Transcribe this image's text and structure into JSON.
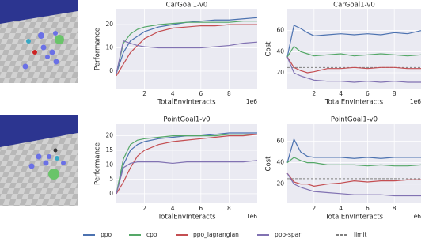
{
  "chart_data": [
    {
      "type": "line",
      "title": "CarGoal1-v0",
      "xlabel": "TotalEnvInteracts",
      "ylabel": "Performance",
      "x_offset_label": "1e6",
      "x": [
        0,
        0.5,
        1,
        1.5,
        2,
        3,
        4,
        5,
        6,
        7,
        8,
        9,
        10
      ],
      "xlim": [
        0,
        10
      ],
      "xticks": [
        2,
        4,
        6,
        8
      ],
      "ylim": [
        -7.5,
        26.5
      ],
      "yticks": [
        0,
        10,
        20
      ],
      "grid": true,
      "series": [
        {
          "name": "ppo",
          "color": "#4c72b0",
          "values": [
            -1,
            8,
            13,
            15,
            17,
            19,
            20,
            21,
            21.5,
            22,
            22,
            22.5,
            23
          ]
        },
        {
          "name": "cpo",
          "color": "#55a868",
          "values": [
            -1,
            12,
            16,
            18,
            19,
            20,
            20.5,
            21,
            21,
            21,
            21,
            21.5,
            21.5
          ]
        },
        {
          "name": "ppo_lagrangian",
          "color": "#c44e52",
          "values": [
            -2,
            3,
            8,
            11,
            14,
            17,
            18.5,
            19,
            19.5,
            19.5,
            20,
            20,
            20
          ]
        },
        {
          "name": "ppo-spar",
          "color": "#8172b2",
          "values": [
            -1,
            13,
            12,
            11,
            10.5,
            10,
            10,
            10,
            10,
            10.5,
            11,
            12,
            12.5
          ]
        }
      ]
    },
    {
      "type": "line",
      "title": "CarGoal1-v0",
      "xlabel": "TotalEnvInteracts",
      "ylabel": "Cost",
      "x_offset_label": "1e6",
      "x": [
        0,
        0.5,
        1,
        1.5,
        2,
        3,
        4,
        5,
        6,
        7,
        8,
        9,
        10
      ],
      "xlim": [
        0,
        10
      ],
      "xticks": [
        2,
        4,
        6,
        8
      ],
      "ylim": [
        5,
        80
      ],
      "yticks": [
        20,
        40,
        60
      ],
      "grid": true,
      "limit": {
        "name": "limit",
        "value": 25,
        "color": "#808080"
      },
      "series": [
        {
          "name": "ppo",
          "color": "#4c72b0",
          "values": [
            35,
            65,
            62,
            58,
            55,
            56,
            57,
            56,
            57,
            56,
            58,
            57,
            60
          ]
        },
        {
          "name": "cpo",
          "color": "#55a868",
          "values": [
            35,
            45,
            40,
            38,
            36,
            37,
            38,
            36,
            37,
            38,
            37,
            36,
            37
          ]
        },
        {
          "name": "ppo_lagrangian",
          "color": "#c44e52",
          "values": [
            35,
            25,
            22,
            20,
            21,
            24,
            24,
            25,
            24,
            25,
            25,
            24,
            24
          ]
        },
        {
          "name": "ppo-spar",
          "color": "#8172b2",
          "values": [
            35,
            20,
            17,
            15,
            13,
            12,
            12,
            11,
            12,
            11,
            12,
            11,
            11
          ]
        }
      ]
    },
    {
      "type": "line",
      "title": "PointGoal1-v0",
      "xlabel": "TotalEnvInteracts",
      "ylabel": "Performance",
      "x_offset_label": "1e6",
      "x": [
        0,
        0.5,
        1,
        1.5,
        2,
        3,
        4,
        5,
        6,
        7,
        8,
        9,
        10
      ],
      "xlim": [
        0,
        10
      ],
      "xticks": [
        2,
        4,
        6,
        8
      ],
      "ylim": [
        -3.3,
        24
      ],
      "yticks": [
        0,
        5,
        10,
        15,
        20
      ],
      "grid": true,
      "series": [
        {
          "name": "ppo",
          "color": "#4c72b0",
          "values": [
            0,
            10,
            15,
            17,
            18,
            19,
            19.5,
            20,
            20,
            20.5,
            21,
            21,
            21
          ]
        },
        {
          "name": "cpo",
          "color": "#55a868",
          "values": [
            0,
            12,
            17,
            18.5,
            19,
            19.5,
            20,
            20,
            20,
            20,
            20.5,
            20.5,
            20.5
          ]
        },
        {
          "name": "ppo_lagrangian",
          "color": "#c44e52",
          "values": [
            0,
            4,
            9,
            13,
            15,
            17,
            18,
            18.5,
            19,
            19.5,
            20,
            20,
            20.5
          ]
        },
        {
          "name": "ppo-spar",
          "color": "#8172b2",
          "values": [
            0,
            9,
            10.5,
            11,
            11,
            11,
            10.5,
            11,
            11,
            11,
            11,
            11,
            11.5
          ]
        }
      ]
    },
    {
      "type": "line",
      "title": "PointGoal1-v0",
      "xlabel": "TotalEnvInteracts",
      "ylabel": "Cost",
      "x_offset_label": "1e6",
      "x": [
        0,
        0.5,
        1,
        1.5,
        2,
        3,
        4,
        5,
        6,
        7,
        8,
        9,
        10
      ],
      "xlim": [
        0,
        10
      ],
      "xticks": [
        2,
        4,
        6,
        8
      ],
      "ylim": [
        2,
        76
      ],
      "yticks": [
        20,
        40,
        60
      ],
      "grid": true,
      "limit": {
        "name": "limit",
        "value": 25,
        "color": "#808080"
      },
      "series": [
        {
          "name": "ppo",
          "color": "#4c72b0",
          "values": [
            40,
            62,
            50,
            46,
            45,
            45,
            45,
            44,
            45,
            44,
            45,
            45,
            45
          ]
        },
        {
          "name": "cpo",
          "color": "#55a868",
          "values": [
            40,
            45,
            42,
            40,
            40,
            38,
            38,
            38,
            37,
            38,
            37,
            37,
            38
          ]
        },
        {
          "name": "ppo_lagrangian",
          "color": "#c44e52",
          "values": [
            30,
            22,
            20,
            20,
            18,
            20,
            21,
            23,
            22,
            23,
            23,
            24,
            24
          ]
        },
        {
          "name": "ppo-spar",
          "color": "#8172b2",
          "values": [
            30,
            20,
            17,
            15,
            13,
            12,
            11,
            10,
            10,
            10,
            9,
            9,
            9
          ]
        }
      ]
    }
  ]
}
